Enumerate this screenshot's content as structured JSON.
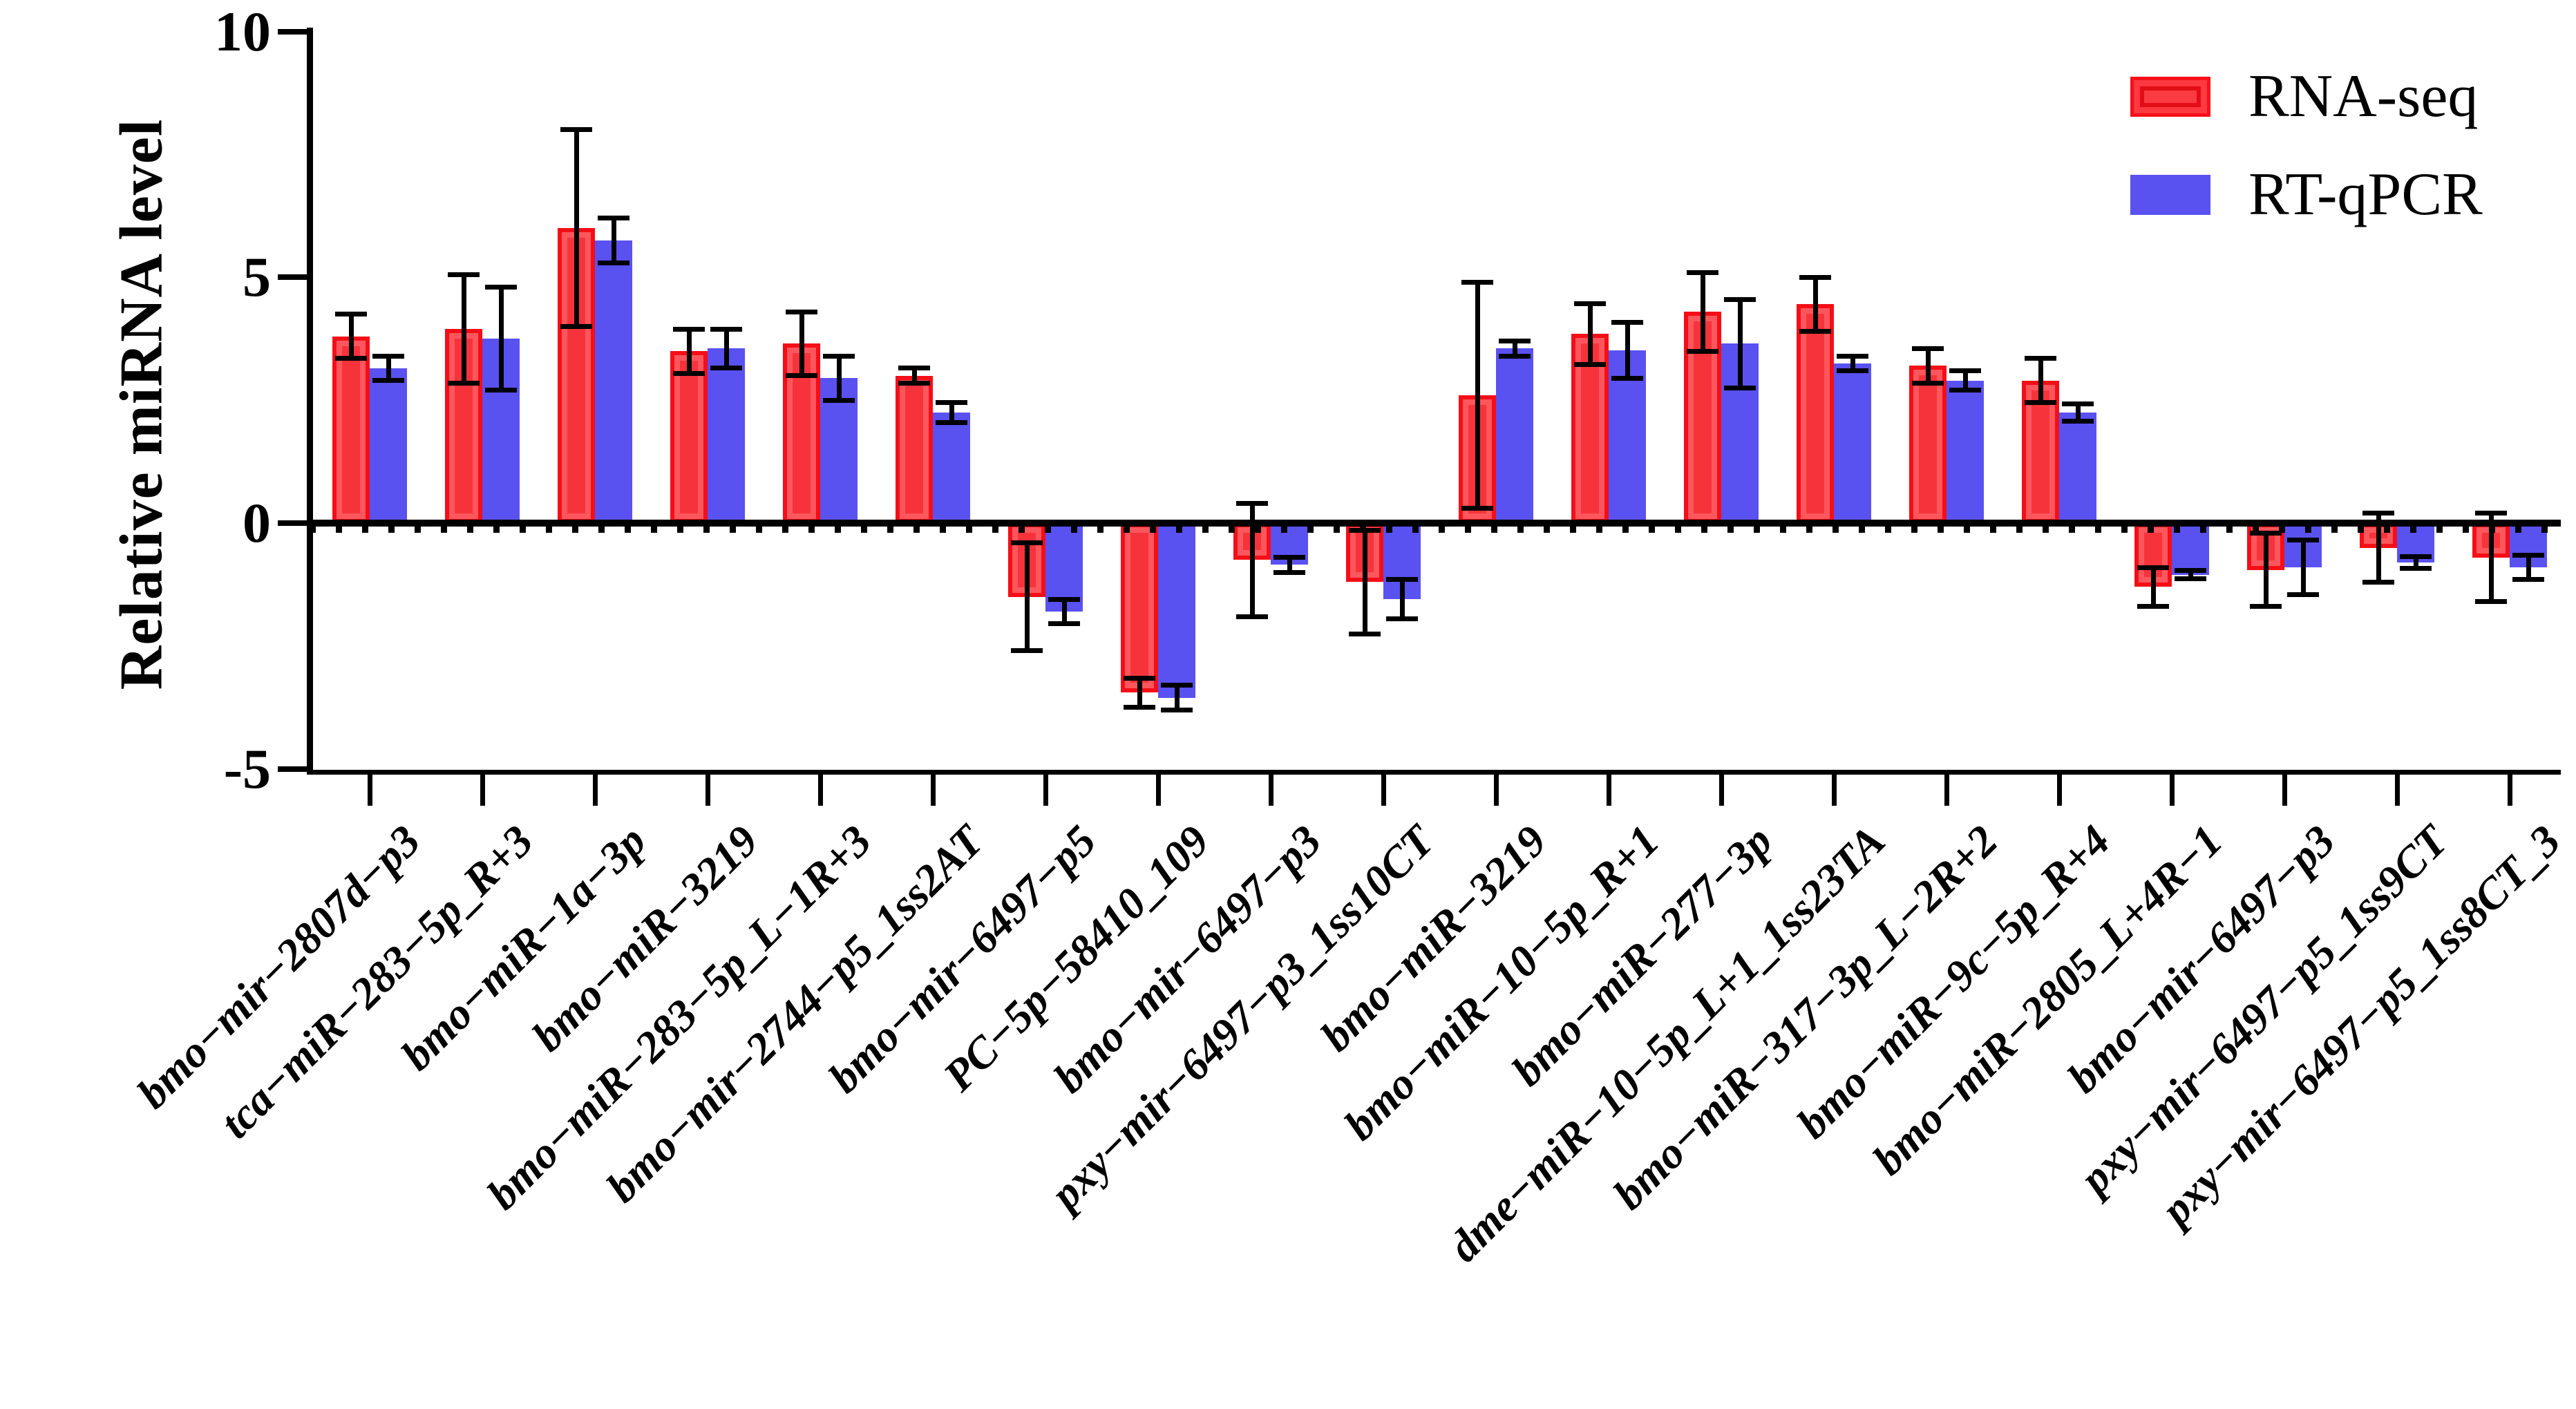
{
  "y_axis": {
    "title": "Relative miRNA level",
    "tick_labels": [
      "10",
      "5",
      "0",
      "-5"
    ],
    "min": -5,
    "max": 10
  },
  "legend": {
    "items": [
      {
        "label": "RNA-seq",
        "color": "#f6101a"
      },
      {
        "label": "RT-qPCR",
        "color": "#5a51f1"
      }
    ]
  },
  "colors": {
    "rna_seq_fill": "#f6333b",
    "rna_seq_border": "#f50e17",
    "rna_seq_inner": "#fd565c",
    "rt_qpcr_fill": "#5a51f1",
    "axis": "#000000"
  },
  "chart_data": {
    "type": "bar",
    "title": "",
    "xlabel": "",
    "ylabel": "Relative miRNA level",
    "ylim": [
      -5,
      10
    ],
    "yticks": [
      10,
      5,
      0,
      -5
    ],
    "grid": false,
    "legend_position": "top-right",
    "error_bars": true,
    "categories": [
      "bmo−mir−2807d−p3",
      "tca−miR−283−5p_R+3",
      "bmo−miR−1a−3p",
      "bmo−miR−3219",
      "bmo−miR−283−5p_L−1R+3",
      "bmo−mir−2744−p5_1ss2AT",
      "bmo−mir−6497−p5",
      "PC−5p−58410_109",
      "bmo−mir−6497−p3",
      "pxy−mir−6497−p3_1ss10CT",
      "bmo−miR−3219",
      "bmo−miR−10−5p_R+1",
      "bmo−miR−277−3p",
      "dme−miR−10−5p_L+1_1ss23TA",
      "bmo−miR−317−3p_L−2R+2",
      "bmo−miR−9c−5p_R+4",
      "bmo−miR−2805_L+4R−1",
      "bmo−mir−6497−p3",
      "pxy−mir−6497−p5_1ss9CT",
      "pxy−mir−6497−p5_1ss8CT_3"
    ],
    "series": [
      {
        "name": "RNA-seq",
        "values": [
          3.8,
          3.95,
          6.0,
          3.5,
          3.65,
          3.0,
          -1.5,
          -3.45,
          -0.75,
          -1.2,
          2.6,
          3.85,
          4.3,
          4.45,
          3.2,
          2.9,
          -1.3,
          -0.95,
          -0.5,
          -0.7
        ],
        "errors": [
          0.45,
          1.1,
          2.0,
          0.45,
          0.65,
          0.15,
          1.1,
          0.3,
          1.15,
          1.05,
          2.3,
          0.62,
          0.8,
          0.55,
          0.35,
          0.45,
          0.4,
          0.75,
          0.7,
          0.9
        ]
      },
      {
        "name": "RT-qPCR",
        "values": [
          3.15,
          3.75,
          5.75,
          3.55,
          2.95,
          2.25,
          -1.8,
          -3.55,
          -0.85,
          -1.55,
          3.55,
          3.52,
          3.65,
          3.25,
          2.9,
          2.25,
          -1.05,
          -0.9,
          -0.8,
          -0.9
        ],
        "errors": [
          0.25,
          1.05,
          0.45,
          0.4,
          0.45,
          0.2,
          0.25,
          0.25,
          0.15,
          0.4,
          0.16,
          0.57,
          0.9,
          0.15,
          0.2,
          0.18,
          0.08,
          0.55,
          0.12,
          0.25
        ]
      }
    ]
  }
}
